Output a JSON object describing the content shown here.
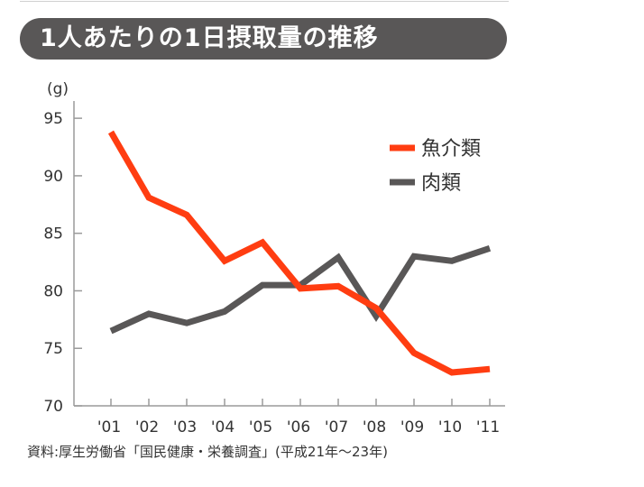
{
  "colors": {
    "fish": "#ff3d11",
    "meat": "#595757",
    "title_bg": "#595757"
  },
  "chart_data": {
    "type": "line",
    "title": "1人あたりの1日摂取量の推移",
    "ylabel": "(g)",
    "xlabel": "",
    "categories": [
      "'01",
      "'02",
      "'03",
      "'04",
      "'05",
      "'06",
      "'07",
      "'08",
      "'09",
      "'10",
      "'11"
    ],
    "y_ticks": [
      "70",
      "75",
      "80",
      "85",
      "90",
      "95"
    ],
    "ylim": [
      70,
      96.5
    ],
    "grid": false,
    "legend_position": "top-right",
    "series": [
      {
        "name": "魚介類",
        "color": "#ff3d11",
        "values": [
          93.8,
          88.1,
          86.6,
          82.6,
          84.2,
          80.2,
          80.4,
          78.5,
          74.6,
          72.9,
          73.2
        ]
      },
      {
        "name": "肉類",
        "color": "#595757",
        "values": [
          76.5,
          78.0,
          77.2,
          78.2,
          80.5,
          80.5,
          82.9,
          77.8,
          83.0,
          82.6,
          83.7
        ]
      }
    ],
    "source": "資料:厚生労働省「国民健康・栄養調査」(平成21年〜23年)"
  }
}
